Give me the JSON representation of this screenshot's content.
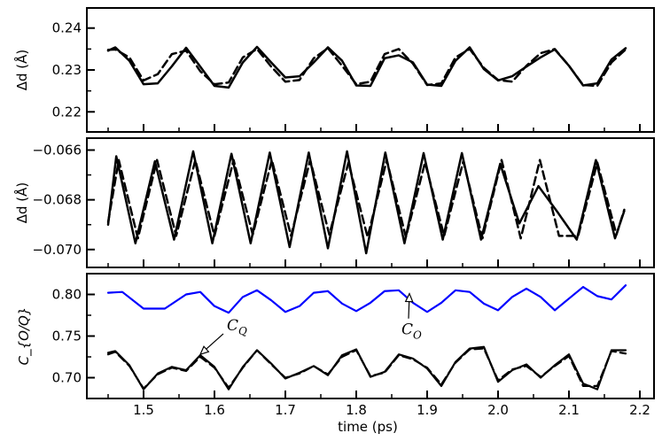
{
  "chart_data": [
    {
      "type": "line",
      "ylabel": "Δd (Å)",
      "xlim": [
        1.42,
        2.22
      ],
      "ylim": [
        0.2152,
        0.2448
      ],
      "yticks": [
        0.22,
        0.23,
        0.24
      ],
      "ytick_labels": [
        "0.22",
        "0.23",
        "0.24"
      ],
      "xtick_labels_visible": false,
      "series": [
        {
          "style": "solid",
          "color": "#000000",
          "x": [
            1.45,
            1.46,
            1.48,
            1.5,
            1.52,
            1.54,
            1.56,
            1.58,
            1.6,
            1.62,
            1.64,
            1.66,
            1.68,
            1.7,
            1.72,
            1.74,
            1.76,
            1.78,
            1.8,
            1.82,
            1.84,
            1.86,
            1.88,
            1.9,
            1.92,
            1.94,
            1.96,
            1.98,
            2.0,
            2.02,
            2.04,
            2.06,
            2.08,
            2.1,
            2.12,
            2.14,
            2.16,
            2.18
          ],
          "y": [
            0.2346,
            0.2354,
            0.2322,
            0.2266,
            0.2268,
            0.2309,
            0.2353,
            0.2308,
            0.2262,
            0.2258,
            0.2318,
            0.2355,
            0.2318,
            0.2282,
            0.2285,
            0.2318,
            0.2354,
            0.2322,
            0.2263,
            0.2262,
            0.2328,
            0.2335,
            0.2318,
            0.2265,
            0.2262,
            0.2322,
            0.2354,
            0.2302,
            0.2275,
            0.2285,
            0.2308,
            0.233,
            0.2349,
            0.231,
            0.2263,
            0.2268,
            0.2325,
            0.2352
          ]
        },
        {
          "style": "dashed",
          "color": "#000000",
          "x": [
            1.45,
            1.46,
            1.48,
            1.5,
            1.52,
            1.54,
            1.56,
            1.58,
            1.6,
            1.62,
            1.64,
            1.66,
            1.68,
            1.7,
            1.72,
            1.74,
            1.76,
            1.78,
            1.8,
            1.82,
            1.84,
            1.86,
            1.88,
            1.9,
            1.92,
            1.94,
            1.96,
            1.98,
            2.0,
            2.02,
            2.04,
            2.06,
            2.08,
            2.1,
            2.12,
            2.14,
            2.16,
            2.18
          ],
          "y": [
            0.2348,
            0.2349,
            0.233,
            0.2275,
            0.229,
            0.2338,
            0.2346,
            0.2297,
            0.2266,
            0.227,
            0.233,
            0.235,
            0.2308,
            0.2272,
            0.2276,
            0.2328,
            0.2352,
            0.231,
            0.2266,
            0.2272,
            0.2338,
            0.235,
            0.2315,
            0.2264,
            0.2268,
            0.233,
            0.235,
            0.2305,
            0.2276,
            0.2272,
            0.231,
            0.234,
            0.235,
            0.231,
            0.2264,
            0.2262,
            0.2318,
            0.2349
          ]
        }
      ]
    },
    {
      "type": "line",
      "ylabel": "Δd (Å)",
      "xlim": [
        1.42,
        2.22
      ],
      "ylim": [
        -0.07072,
        -0.06552
      ],
      "yticks": [
        -0.07,
        -0.068,
        -0.066
      ],
      "ytick_labels": [
        "−0.070",
        "−0.068",
        "−0.066"
      ],
      "xtick_labels_visible": false,
      "series": [
        {
          "style": "solid",
          "color": "#000000",
          "x": [
            1.45,
            1.4615,
            1.4885,
            1.516,
            1.543,
            1.57,
            1.597,
            1.624,
            1.651,
            1.678,
            1.706,
            1.733,
            1.76,
            1.787,
            1.814,
            1.841,
            1.868,
            1.895,
            1.922,
            1.949,
            1.976,
            2.003,
            2.03,
            2.057,
            2.084,
            2.111,
            2.138,
            2.165,
            2.178
          ],
          "y": [
            -0.069,
            -0.06625,
            -0.06975,
            -0.06645,
            -0.0696,
            -0.06605,
            -0.06975,
            -0.06615,
            -0.06975,
            -0.0661,
            -0.0699,
            -0.0661,
            -0.06995,
            -0.06605,
            -0.07015,
            -0.0661,
            -0.06975,
            -0.06612,
            -0.0696,
            -0.06612,
            -0.0696,
            -0.06655,
            -0.06895,
            -0.06745,
            -0.0685,
            -0.0696,
            -0.0664,
            -0.06955,
            -0.06845
          ]
        },
        {
          "style": "dashed",
          "color": "#000000",
          "x": [
            1.45,
            1.465,
            1.492,
            1.519,
            1.546,
            1.573,
            1.6,
            1.627,
            1.654,
            1.681,
            1.708,
            1.735,
            1.762,
            1.789,
            1.816,
            1.843,
            1.87,
            1.897,
            1.924,
            1.951,
            1.978,
            2.005,
            2.032,
            2.059,
            2.086,
            2.113,
            2.14,
            2.167,
            2.178
          ],
          "y": [
            -0.0689,
            -0.0664,
            -0.06955,
            -0.0664,
            -0.06945,
            -0.0664,
            -0.06945,
            -0.0664,
            -0.0694,
            -0.0664,
            -0.06945,
            -0.0664,
            -0.0694,
            -0.0665,
            -0.0695,
            -0.0664,
            -0.0695,
            -0.0665,
            -0.06945,
            -0.06645,
            -0.06955,
            -0.0664,
            -0.06955,
            -0.0664,
            -0.06945,
            -0.06945,
            -0.0665,
            -0.0694,
            -0.0684
          ]
        }
      ]
    },
    {
      "type": "line",
      "ylabel": "C_{O/Q}",
      "xlabel": "time (ps)",
      "xlim": [
        1.42,
        2.22
      ],
      "ylim": [
        0.675,
        0.825
      ],
      "xticks": [
        1.5,
        1.6,
        1.7,
        1.8,
        1.9,
        2.0,
        2.1,
        2.2
      ],
      "xtick_labels": [
        "1.5",
        "1.6",
        "1.7",
        "1.8",
        "1.9",
        "2.0",
        "2.1",
        "2.2"
      ],
      "yticks": [
        0.7,
        0.75,
        0.8
      ],
      "ytick_labels": [
        "0.70",
        "0.75",
        "0.80"
      ],
      "annotations": [
        {
          "label": "C",
          "sub": "Q",
          "xy": [
            1.58,
            0.728
          ],
          "text_xy": [
            1.62,
            0.757
          ]
        },
        {
          "label": "C",
          "sub": "O",
          "xy": [
            1.875,
            0.801
          ],
          "text_xy": [
            1.87,
            0.754
          ]
        }
      ],
      "series": [
        {
          "name": "C_O",
          "style": "solid",
          "color": "#0000ff",
          "x": [
            1.45,
            1.47,
            1.5,
            1.53,
            1.56,
            1.58,
            1.6,
            1.62,
            1.64,
            1.66,
            1.68,
            1.7,
            1.72,
            1.74,
            1.76,
            1.78,
            1.8,
            1.82,
            1.84,
            1.86,
            1.88,
            1.9,
            1.92,
            1.94,
            1.96,
            1.98,
            2.0,
            2.02,
            2.04,
            2.06,
            2.08,
            2.1,
            2.12,
            2.14,
            2.16,
            2.18
          ],
          "y": [
            0.802,
            0.803,
            0.783,
            0.783,
            0.8,
            0.803,
            0.786,
            0.778,
            0.797,
            0.805,
            0.793,
            0.779,
            0.786,
            0.802,
            0.804,
            0.789,
            0.78,
            0.79,
            0.804,
            0.805,
            0.79,
            0.779,
            0.79,
            0.805,
            0.803,
            0.789,
            0.781,
            0.797,
            0.807,
            0.797,
            0.781,
            0.795,
            0.809,
            0.798,
            0.794,
            0.811
          ]
        },
        {
          "name": "C_Q dashed",
          "style": "dashed",
          "color": "#000000",
          "x": [
            1.45,
            1.46,
            1.48,
            1.5,
            1.52,
            1.54,
            1.56,
            1.58,
            1.6,
            1.62,
            1.64,
            1.66,
            1.68,
            1.7,
            1.72,
            1.74,
            1.76,
            1.78,
            1.8,
            1.82,
            1.84,
            1.86,
            1.88,
            1.9,
            1.92,
            1.94,
            1.96,
            1.98,
            2.0,
            2.02,
            2.04,
            2.06,
            2.08,
            2.1,
            2.12,
            2.14,
            2.16,
            2.18
          ],
          "y": [
            0.728,
            0.731,
            0.714,
            0.687,
            0.704,
            0.712,
            0.708,
            0.725,
            0.712,
            0.688,
            0.712,
            0.733,
            0.716,
            0.7,
            0.705,
            0.714,
            0.704,
            0.725,
            0.733,
            0.702,
            0.706,
            0.727,
            0.722,
            0.712,
            0.692,
            0.718,
            0.734,
            0.735,
            0.697,
            0.71,
            0.714,
            0.701,
            0.714,
            0.726,
            0.69,
            0.69,
            0.732,
            0.729
          ]
        },
        {
          "name": "C_Q",
          "style": "solid",
          "color": "#000000",
          "x": [
            1.45,
            1.46,
            1.48,
            1.5,
            1.52,
            1.54,
            1.56,
            1.58,
            1.6,
            1.62,
            1.64,
            1.66,
            1.68,
            1.7,
            1.72,
            1.74,
            1.76,
            1.78,
            1.8,
            1.82,
            1.84,
            1.86,
            1.88,
            1.9,
            1.92,
            1.94,
            1.96,
            1.98,
            2.0,
            2.02,
            2.04,
            2.06,
            2.08,
            2.1,
            2.12,
            2.14,
            2.16,
            2.18
          ],
          "y": [
            0.73,
            0.732,
            0.715,
            0.686,
            0.705,
            0.713,
            0.709,
            0.727,
            0.713,
            0.686,
            0.713,
            0.733,
            0.717,
            0.699,
            0.706,
            0.714,
            0.703,
            0.727,
            0.734,
            0.701,
            0.707,
            0.728,
            0.723,
            0.711,
            0.69,
            0.719,
            0.735,
            0.737,
            0.695,
            0.709,
            0.716,
            0.7,
            0.715,
            0.728,
            0.693,
            0.686,
            0.733,
            0.733
          ]
        }
      ]
    }
  ]
}
